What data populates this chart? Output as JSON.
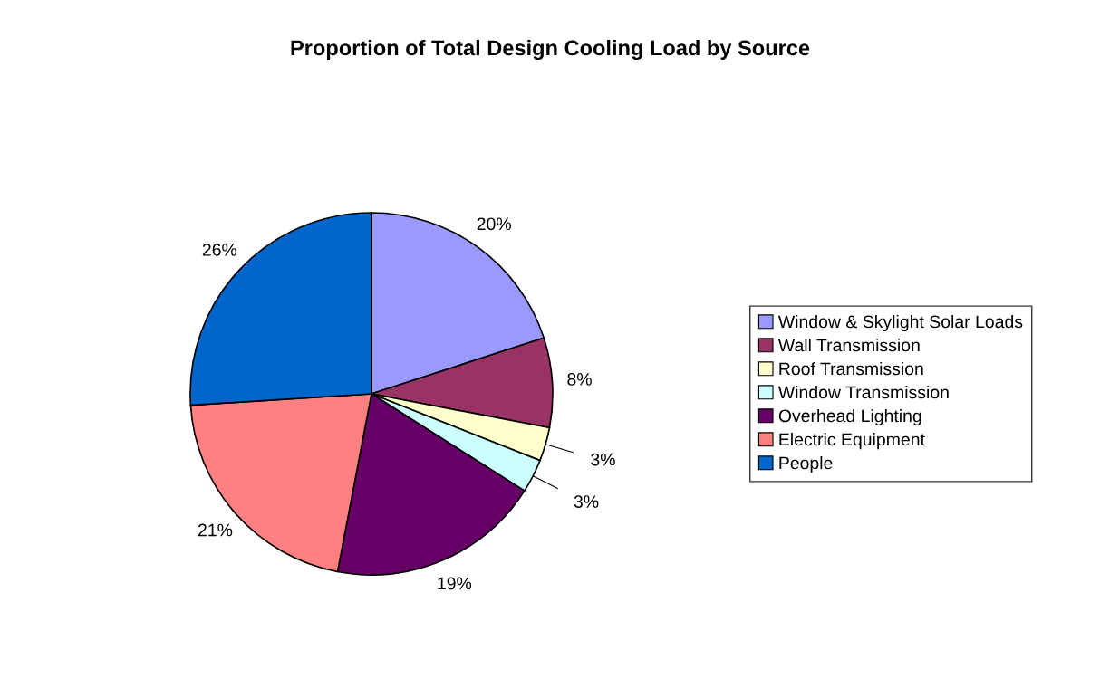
{
  "chart_data": {
    "type": "pie",
    "title": "Proportion of Total Design Cooling Load by Source",
    "categories": [
      "Window & Skylight Solar Loads",
      "Wall Transmission",
      "Roof Transmission",
      "Window Transmission",
      "Overhead Lighting",
      "Electric Equipment",
      "People"
    ],
    "values": [
      20,
      8,
      3,
      3,
      19,
      21,
      26
    ],
    "value_labels": [
      "20%",
      "8%",
      "3%",
      "3%",
      "19%",
      "21%",
      "26%"
    ],
    "colors": [
      "#9999ff",
      "#993366",
      "#ffffcc",
      "#ccffff",
      "#660066",
      "#ff8080",
      "#0066cc"
    ],
    "legend": "right"
  }
}
